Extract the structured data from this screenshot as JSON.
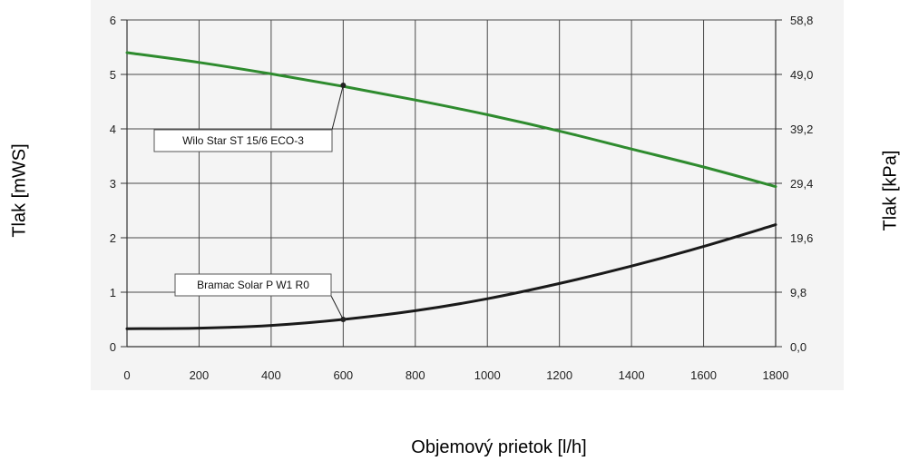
{
  "chart_data": {
    "type": "line",
    "xlabel": "Objemový prietok [l/h]",
    "ylabel_left": "Tlak [mWS]",
    "ylabel_right": "Tlak [kPa]",
    "xlim": [
      0,
      1800
    ],
    "ylim": [
      0,
      6
    ],
    "x_ticks": [
      "0",
      "200",
      "400",
      "600",
      "800",
      "1000",
      "1200",
      "1400",
      "1600",
      "1800"
    ],
    "y_ticks_left": [
      "0",
      "1",
      "2",
      "3",
      "4",
      "5",
      "6"
    ],
    "y_ticks_right": [
      "0,0",
      "9,8",
      "19,6",
      "29,4",
      "39,2",
      "49,0",
      "58,8"
    ],
    "grid": true,
    "series": [
      {
        "name": "Wilo Star ST 15/6 ECO-3",
        "color": "#2e8b2e",
        "x": [
          0,
          200,
          400,
          600,
          800,
          1000,
          1200,
          1400,
          1600,
          1800
        ],
        "y": [
          5.4,
          5.22,
          5.01,
          4.78,
          4.53,
          4.26,
          3.96,
          3.63,
          3.3,
          2.94
        ]
      },
      {
        "name": "Bramac Solar P W1 R0",
        "color": "#1a1a1a",
        "x": [
          0,
          200,
          400,
          600,
          800,
          1000,
          1200,
          1400,
          1600,
          1800
        ],
        "y": [
          0.33,
          0.34,
          0.39,
          0.5,
          0.66,
          0.88,
          1.16,
          1.48,
          1.84,
          2.24
        ]
      }
    ],
    "annotations": [
      {
        "text": "Wilo Star ST 15/6 ECO-3",
        "x": 600,
        "y": 4.8
      },
      {
        "text": "Bramac Solar P W1 R0",
        "x": 600,
        "y": 0.5
      }
    ]
  }
}
